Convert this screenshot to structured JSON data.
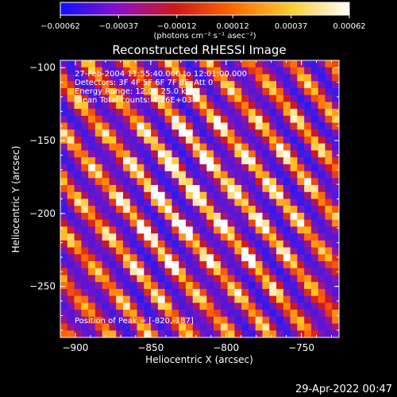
{
  "chart_data": {
    "type": "heatmap",
    "title": "Reconstructed RHESSI Image",
    "xlabel": "Heliocentric X (arcsec)",
    "ylabel": "Heliocentric Y (arcsec)",
    "xlim": [
      -910,
      -725
    ],
    "ylim": [
      -285,
      -95
    ],
    "x_ticks": [
      -900,
      -850,
      -800,
      -750
    ],
    "x_tick_labels": [
      "−900",
      "−850",
      "−800",
      "−750"
    ],
    "y_ticks": [
      -100,
      -150,
      -200,
      -250
    ],
    "y_tick_labels": [
      "−100",
      "−150",
      "−200",
      "−250"
    ],
    "colorbar": {
      "min": -0.00062,
      "max": 0.00062,
      "ticks": [
        -0.00062,
        -0.00037,
        -0.00012,
        0.00012,
        0.00037,
        0.00062
      ],
      "tick_labels": [
        "−0.00062",
        "−0.00037",
        "−0.00012",
        "0.00012",
        "0.00037",
        "0.00062"
      ],
      "unit_label": "(photons cm⁻² s⁻¹ asec⁻²)",
      "colors": [
        "#1010ff",
        "#8a10c8",
        "#d01818",
        "#ff6a00",
        "#ffcc30",
        "#ffffff"
      ]
    },
    "peak": {
      "x": -820,
      "y": -187
    },
    "annotations": [
      "27-Feb-2004 11:55:40.000 to 12:01:00.000",
      "Detectors: 3F 4F 5F 6F 7F 8F, Att 0",
      "Energy Range: 12.0 - 25.0 keV",
      "Clean     Total counts: 4.26E+03"
    ],
    "peak_label": "Position of Peak = [-820,-187]"
  },
  "footer": {
    "timestamp": "29-Apr-2022 00:47"
  }
}
